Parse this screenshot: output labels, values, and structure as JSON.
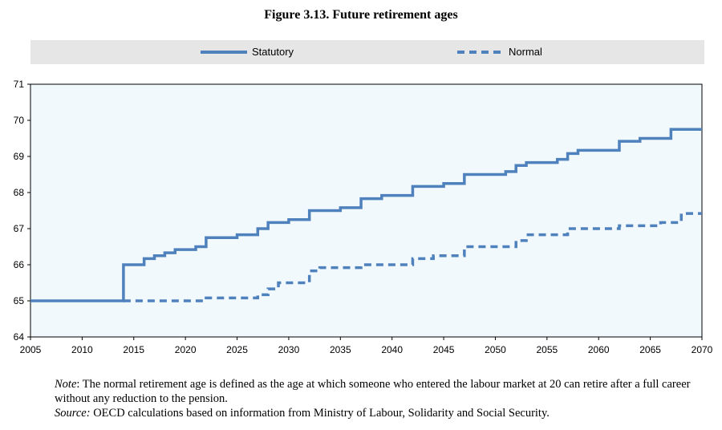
{
  "figure": {
    "title": "Figure 3.13. Future retirement ages",
    "note_label": "Note",
    "note_text": ": The normal retirement age is defined as the age at which someone who entered the labour market at 20 can retire after a full career without any reduction to the pension.",
    "source_label": "Source:",
    "source_text": " OECD calculations based on information from Ministry of Labour, Solidarity and Social Security."
  },
  "colors": {
    "series": "#4f81bd",
    "plot_bg": "#f2f9fc",
    "legend_bg": "#e6e6e6"
  },
  "chart_data": {
    "type": "line",
    "title": "Figure 3.13. Future retirement ages",
    "xlabel": "",
    "ylabel": "",
    "xlim": [
      2005,
      2070
    ],
    "ylim": [
      64,
      71
    ],
    "xticks": [
      2005,
      2010,
      2015,
      2020,
      2025,
      2030,
      2035,
      2040,
      2045,
      2050,
      2055,
      2060,
      2065,
      2070
    ],
    "yticks": [
      64,
      65,
      66,
      67,
      68,
      69,
      70,
      71
    ],
    "grid": false,
    "legend_position": "top",
    "step": true,
    "series": [
      {
        "name": "Statutory",
        "style": "solid",
        "x": [
          2005,
          2014,
          2015,
          2016,
          2017,
          2018,
          2019,
          2020,
          2021,
          2022,
          2023,
          2025,
          2027,
          2028,
          2030,
          2032,
          2033,
          2035,
          2037,
          2039,
          2040,
          2042,
          2043,
          2045,
          2047,
          2050,
          2051,
          2052,
          2053,
          2055,
          2056,
          2057,
          2058,
          2060,
          2062,
          2064,
          2067,
          2070
        ],
        "values": [
          65.0,
          66.0,
          66.0,
          66.17,
          66.25,
          66.33,
          66.42,
          66.42,
          66.5,
          66.75,
          66.75,
          66.83,
          67.0,
          67.17,
          67.25,
          67.5,
          67.5,
          67.58,
          67.83,
          67.92,
          67.92,
          68.17,
          68.17,
          68.25,
          68.5,
          68.5,
          68.58,
          68.75,
          68.83,
          68.83,
          68.92,
          69.08,
          69.17,
          69.17,
          69.42,
          69.5,
          69.75,
          69.75
        ]
      },
      {
        "name": "Normal",
        "style": "dashed",
        "x": [
          2014,
          2022,
          2027,
          2028,
          2029,
          2032,
          2033,
          2037,
          2042,
          2044,
          2047,
          2052,
          2053,
          2057,
          2062,
          2066,
          2068,
          2070
        ],
        "values": [
          65.0,
          65.08,
          65.17,
          65.33,
          65.5,
          65.83,
          65.92,
          66.0,
          66.17,
          66.25,
          66.5,
          66.67,
          66.83,
          67.0,
          67.08,
          67.17,
          67.42,
          67.42
        ]
      }
    ]
  }
}
